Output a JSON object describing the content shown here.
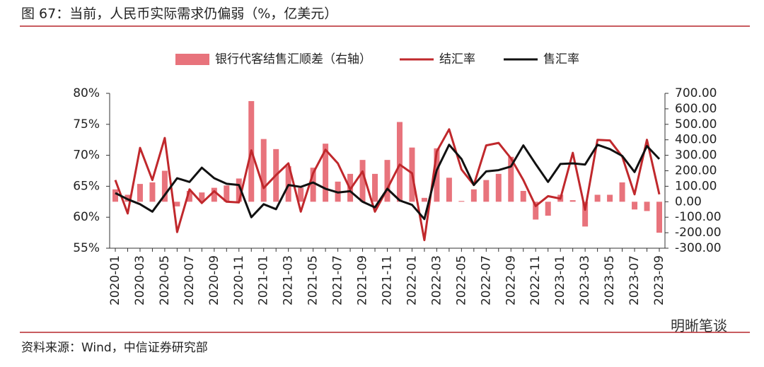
{
  "chart_data": {
    "type": "bar-line",
    "title": "图 67：当前，人民币实际需求仍偏弱（%，亿美元）",
    "source": "资料来源：Wind，中信证券研究部",
    "watermark": "明晰笔谈",
    "categories": [
      "2020-01",
      null,
      "2020-03",
      null,
      "2020-05",
      null,
      "2020-07",
      null,
      "2020-09",
      null,
      "2020-11",
      null,
      "2021-01",
      null,
      "2021-03",
      null,
      "2021-05",
      null,
      "2021-07",
      null,
      "2021-09",
      null,
      "2021-11",
      null,
      "2022-01",
      null,
      "2022-03",
      null,
      "2022-05",
      null,
      "2022-07",
      null,
      "2022-09",
      null,
      "2022-11",
      null,
      "2023-01",
      null,
      "2023-03",
      null,
      "2023-05",
      null,
      "2023-07",
      null,
      "2023-09"
    ],
    "series": [
      {
        "name": "银行代客结售汇顺差（右轴）",
        "type": "bar",
        "axis": "y2",
        "color": "#e8737c",
        "values": [
          80,
          45,
          115,
          125,
          200,
          -30,
          70,
          60,
          90,
          105,
          150,
          650,
          405,
          340,
          230,
          90,
          220,
          375,
          130,
          180,
          270,
          180,
          270,
          515,
          350,
          25,
          345,
          155,
          5,
          80,
          140,
          180,
          290,
          70,
          -115,
          -90,
          45,
          10,
          -160,
          45,
          45,
          125,
          -50,
          -60,
          -200
        ]
      },
      {
        "name": "结汇率",
        "type": "line",
        "axis": "y",
        "color": "#c0282c",
        "values": [
          66.0,
          60.6,
          71.2,
          66.0,
          72.8,
          57.6,
          64.5,
          62.3,
          64.2,
          62.5,
          62.4,
          70.8,
          64.7,
          66.8,
          68.7,
          60.9,
          67.1,
          70.9,
          68.7,
          64.5,
          67.4,
          60.9,
          64.6,
          68.5,
          67.1,
          56.3,
          70.6,
          74.2,
          67.7,
          65.2,
          71.6,
          72.0,
          69.5,
          66.0,
          61.8,
          63.4,
          63.0,
          70.4,
          61.2,
          72.5,
          72.4,
          69.8,
          63.7,
          72.5,
          63.7
        ]
      },
      {
        "name": "售汇率",
        "type": "line",
        "axis": "y",
        "color": "#111111",
        "values": [
          63.9,
          62.9,
          62.1,
          60.9,
          63.6,
          66.3,
          65.7,
          68.0,
          66.3,
          65.4,
          65.2,
          60.0,
          62.1,
          61.3,
          65.2,
          64.9,
          65.6,
          64.6,
          64.0,
          64.2,
          62.5,
          61.6,
          64.6,
          62.7,
          62.0,
          59.7,
          67.6,
          71.7,
          69.4,
          65.2,
          67.4,
          67.6,
          68.2,
          71.6,
          68.6,
          65.7,
          68.6,
          68.7,
          68.5,
          71.7,
          71.0,
          69.9,
          67.3,
          71.5,
          69.4
        ]
      }
    ],
    "ylim": [
      55,
      80
    ],
    "yticks": [
      {
        "value": 55,
        "label": "55%"
      },
      {
        "value": 60,
        "label": "60%"
      },
      {
        "value": 65,
        "label": "65%"
      },
      {
        "value": 70,
        "label": "70%"
      },
      {
        "value": 75,
        "label": "75%"
      },
      {
        "value": 80,
        "label": "80%"
      }
    ],
    "y2lim": [
      -300,
      700
    ],
    "y2ticks": [
      {
        "value": -300,
        "label": "-300.00"
      },
      {
        "value": -200,
        "label": "-200.00"
      },
      {
        "value": -100,
        "label": "-100.00"
      },
      {
        "value": 0,
        "label": "0.00"
      },
      {
        "value": 100,
        "label": "100.00"
      },
      {
        "value": 200,
        "label": "200.00"
      },
      {
        "value": 300,
        "label": "300.00"
      },
      {
        "value": 400,
        "label": "400.00"
      },
      {
        "value": 500,
        "label": "500.00"
      },
      {
        "value": 600,
        "label": "600.00"
      },
      {
        "value": 700,
        "label": "700.00"
      }
    ],
    "legend": "top"
  }
}
